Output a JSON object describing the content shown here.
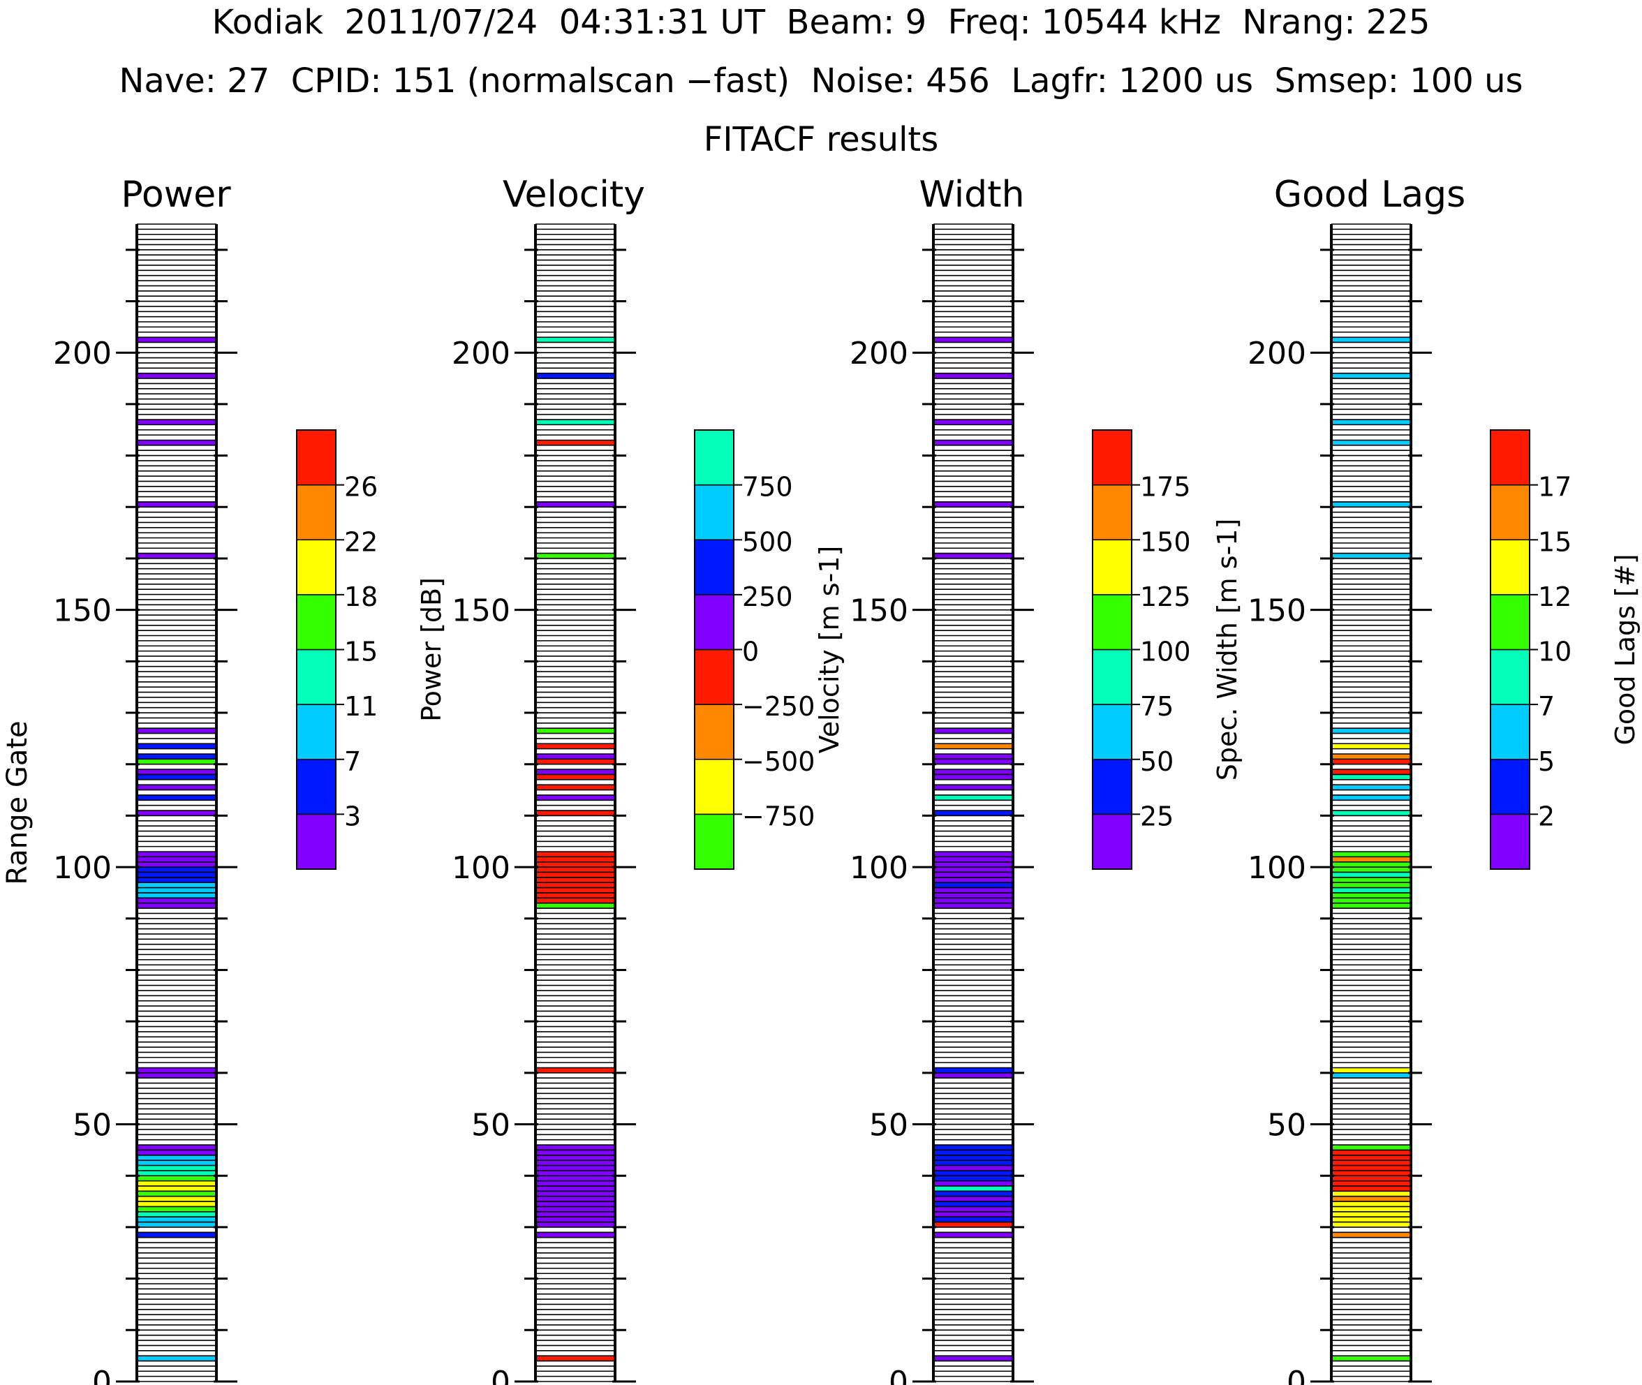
{
  "header": {
    "line1": "Kodiak  2011/07/24  04:31:31 UT  Beam: 9  Freq: 10544 kHz  Nrang: 225",
    "line2": "Nave: 27  CPID: 151 (normalscan −fast)  Noise: 456  Lagfr: 1200 us  Smsep: 100 us",
    "line3": "FITACF results"
  },
  "ylabel": "Range Gate",
  "chart_data": {
    "type": "heatmap",
    "nrang": 225,
    "ylim": [
      0,
      225
    ],
    "yticks": [
      0,
      50,
      100,
      150,
      200
    ],
    "grid": false,
    "panels": [
      {
        "title": "Power",
        "colorbar": {
          "label": "Power [dB]",
          "levels": [
            0,
            3,
            7,
            11,
            15,
            18,
            22,
            26,
            30
          ],
          "tick_labels": [
            "3",
            "7",
            "11",
            "15",
            "18",
            "22",
            "26"
          ],
          "colors": [
            "#8000ff",
            "#0018ff",
            "#00ccff",
            "#00ffb8",
            "#33ff00",
            "#ffff00",
            "#ff8800",
            "#ff1a00"
          ]
        },
        "gates": [
          [
            4,
            7
          ],
          [
            28,
            3
          ],
          [
            30,
            8
          ],
          [
            31,
            9
          ],
          [
            32,
            13
          ],
          [
            33,
            16
          ],
          [
            34,
            21
          ],
          [
            35,
            20
          ],
          [
            36,
            17
          ],
          [
            37,
            21
          ],
          [
            38,
            19
          ],
          [
            39,
            17
          ],
          [
            40,
            14
          ],
          [
            41,
            12
          ],
          [
            42,
            10
          ],
          [
            43,
            9
          ],
          [
            44,
            2
          ],
          [
            45,
            1
          ],
          [
            59,
            1
          ],
          [
            60,
            1
          ],
          [
            92,
            1
          ],
          [
            93,
            1
          ],
          [
            94,
            8
          ],
          [
            95,
            10
          ],
          [
            96,
            9
          ],
          [
            97,
            5
          ],
          [
            98,
            4
          ],
          [
            99,
            3
          ],
          [
            100,
            2
          ],
          [
            101,
            2
          ],
          [
            102,
            2
          ],
          [
            110,
            2
          ],
          [
            113,
            3
          ],
          [
            115,
            2
          ],
          [
            117,
            3
          ],
          [
            118,
            2
          ],
          [
            120,
            16
          ],
          [
            121,
            3
          ],
          [
            123,
            3
          ],
          [
            126,
            2
          ],
          [
            160,
            1
          ],
          [
            170,
            1
          ],
          [
            182,
            1
          ],
          [
            186,
            1
          ],
          [
            195,
            2
          ],
          [
            202,
            1
          ]
        ]
      },
      {
        "title": "Velocity",
        "colorbar": {
          "label": "Velocity [m s-1]",
          "levels": [
            -1000,
            -750,
            -500,
            -250,
            0,
            250,
            500,
            750,
            1000
          ],
          "tick_labels": [
            "−750",
            "−500",
            "−250",
            "0",
            "250",
            "500",
            "750"
          ],
          "colors": [
            "#33ff00",
            "#ffff00",
            "#ff8800",
            "#ff1a00",
            "#8000ff",
            "#0018ff",
            "#00ccff",
            "#00ffb8"
          ]
        },
        "gates": [
          [
            4,
            -120
          ],
          [
            28,
            150
          ],
          [
            30,
            120
          ],
          [
            31,
            110
          ],
          [
            32,
            140
          ],
          [
            33,
            120
          ],
          [
            34,
            130
          ],
          [
            35,
            100
          ],
          [
            36,
            150
          ],
          [
            37,
            120
          ],
          [
            38,
            110
          ],
          [
            39,
            140
          ],
          [
            40,
            130
          ],
          [
            41,
            120
          ],
          [
            42,
            100
          ],
          [
            43,
            140
          ],
          [
            44,
            120
          ],
          [
            45,
            110
          ],
          [
            60,
            -150
          ],
          [
            92,
            -800
          ],
          [
            93,
            -100
          ],
          [
            94,
            -150
          ],
          [
            95,
            -120
          ],
          [
            96,
            -180
          ],
          [
            97,
            -140
          ],
          [
            98,
            -110
          ],
          [
            99,
            -160
          ],
          [
            100,
            -130
          ],
          [
            101,
            -150
          ],
          [
            102,
            -100
          ],
          [
            110,
            -180
          ],
          [
            113,
            120
          ],
          [
            115,
            -120
          ],
          [
            117,
            -150
          ],
          [
            118,
            140
          ],
          [
            120,
            -100
          ],
          [
            121,
            120
          ],
          [
            123,
            -140
          ],
          [
            126,
            -900
          ],
          [
            160,
            -850
          ],
          [
            170,
            100
          ],
          [
            182,
            -120
          ],
          [
            186,
            800
          ],
          [
            195,
            300
          ],
          [
            202,
            800
          ]
        ]
      },
      {
        "title": "Width",
        "colorbar": {
          "label": "Spec. Width [m s-1]",
          "levels": [
            0,
            25,
            50,
            75,
            100,
            125,
            150,
            175,
            200
          ],
          "tick_labels": [
            "25",
            "50",
            "75",
            "100",
            "125",
            "150",
            "175"
          ],
          "colors": [
            "#8000ff",
            "#0018ff",
            "#00ccff",
            "#00ffb8",
            "#33ff00",
            "#ffff00",
            "#ff8800",
            "#ff1a00"
          ]
        },
        "gates": [
          [
            4,
            10
          ],
          [
            28,
            15
          ],
          [
            30,
            190
          ],
          [
            31,
            35
          ],
          [
            32,
            20
          ],
          [
            33,
            15
          ],
          [
            34,
            40
          ],
          [
            35,
            20
          ],
          [
            36,
            30
          ],
          [
            37,
            80
          ],
          [
            38,
            20
          ],
          [
            39,
            40
          ],
          [
            40,
            30
          ],
          [
            41,
            15
          ],
          [
            42,
            40
          ],
          [
            43,
            30
          ],
          [
            44,
            35
          ],
          [
            45,
            40
          ],
          [
            59,
            15
          ],
          [
            60,
            30
          ],
          [
            92,
            20
          ],
          [
            93,
            15
          ],
          [
            94,
            20
          ],
          [
            95,
            15
          ],
          [
            96,
            30
          ],
          [
            97,
            20
          ],
          [
            98,
            15
          ],
          [
            99,
            20
          ],
          [
            100,
            15
          ],
          [
            101,
            20
          ],
          [
            102,
            15
          ],
          [
            110,
            30
          ],
          [
            113,
            85
          ],
          [
            115,
            20
          ],
          [
            117,
            15
          ],
          [
            118,
            20
          ],
          [
            120,
            15
          ],
          [
            121,
            20
          ],
          [
            123,
            170
          ],
          [
            126,
            15
          ],
          [
            160,
            10
          ],
          [
            170,
            15
          ],
          [
            182,
            10
          ],
          [
            186,
            15
          ],
          [
            195,
            10
          ],
          [
            202,
            15
          ]
        ]
      },
      {
        "title": "Good Lags",
        "colorbar": {
          "label": "Good Lags [#]",
          "levels": [
            0,
            2,
            5,
            7,
            10,
            12,
            15,
            17,
            20
          ],
          "tick_labels": [
            "2",
            "5",
            "7",
            "10",
            "12",
            "15",
            "17"
          ],
          "colors": [
            "#8000ff",
            "#0018ff",
            "#00ccff",
            "#00ffb8",
            "#33ff00",
            "#ffff00",
            "#ff8800",
            "#ff1a00"
          ]
        },
        "gates": [
          [
            4,
            11
          ],
          [
            28,
            16
          ],
          [
            30,
            14
          ],
          [
            31,
            14
          ],
          [
            32,
            13
          ],
          [
            33,
            14
          ],
          [
            34,
            13
          ],
          [
            35,
            16
          ],
          [
            36,
            14
          ],
          [
            37,
            17
          ],
          [
            38,
            19
          ],
          [
            39,
            18
          ],
          [
            40,
            18
          ],
          [
            41,
            17
          ],
          [
            42,
            18
          ],
          [
            43,
            17
          ],
          [
            44,
            18
          ],
          [
            45,
            11
          ],
          [
            59,
            6
          ],
          [
            60,
            13
          ],
          [
            92,
            11
          ],
          [
            93,
            10
          ],
          [
            94,
            11
          ],
          [
            95,
            8
          ],
          [
            96,
            11
          ],
          [
            97,
            10
          ],
          [
            98,
            9
          ],
          [
            99,
            11
          ],
          [
            100,
            10
          ],
          [
            101,
            16
          ],
          [
            102,
            11
          ],
          [
            110,
            8
          ],
          [
            113,
            6
          ],
          [
            115,
            6
          ],
          [
            117,
            8
          ],
          [
            118,
            17
          ],
          [
            120,
            18
          ],
          [
            121,
            16
          ],
          [
            123,
            13
          ],
          [
            126,
            6
          ],
          [
            160,
            6
          ],
          [
            170,
            6
          ],
          [
            182,
            6
          ],
          [
            186,
            6
          ],
          [
            195,
            6
          ],
          [
            202,
            6
          ]
        ]
      }
    ]
  }
}
